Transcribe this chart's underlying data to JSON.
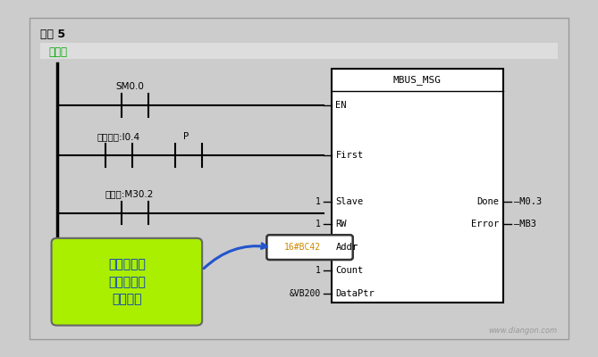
{
  "bg_outer": "#cccccc",
  "bg_inner": "#ffffff",
  "title": "网络 5",
  "subtitle": "写频率",
  "subtitle_color": "#00aa00",
  "sm00_label": "SM0.0",
  "write_freq_label": "写入频率:I0.4",
  "write_freq2_label": "写频率:M30.2",
  "mbus_title": "MBUS_MSG",
  "port_names": [
    "EN",
    "First",
    "Slave",
    "RW",
    "Addr",
    "Count",
    "DataPtr"
  ],
  "left_vals": [
    "",
    "",
    "1",
    "1",
    "16#BC42",
    "1",
    "&VB200"
  ],
  "right_port_names": [
    "Done",
    "Error"
  ],
  "right_labels": [
    "M0.3",
    "MB3"
  ],
  "p_label": "P",
  "annotation_text": "其他内容不\n解释，这个\n下图解释",
  "annotation_bg": "#aaee00",
  "arrow_color": "#2255cc",
  "watermark": "www.diangon.com"
}
